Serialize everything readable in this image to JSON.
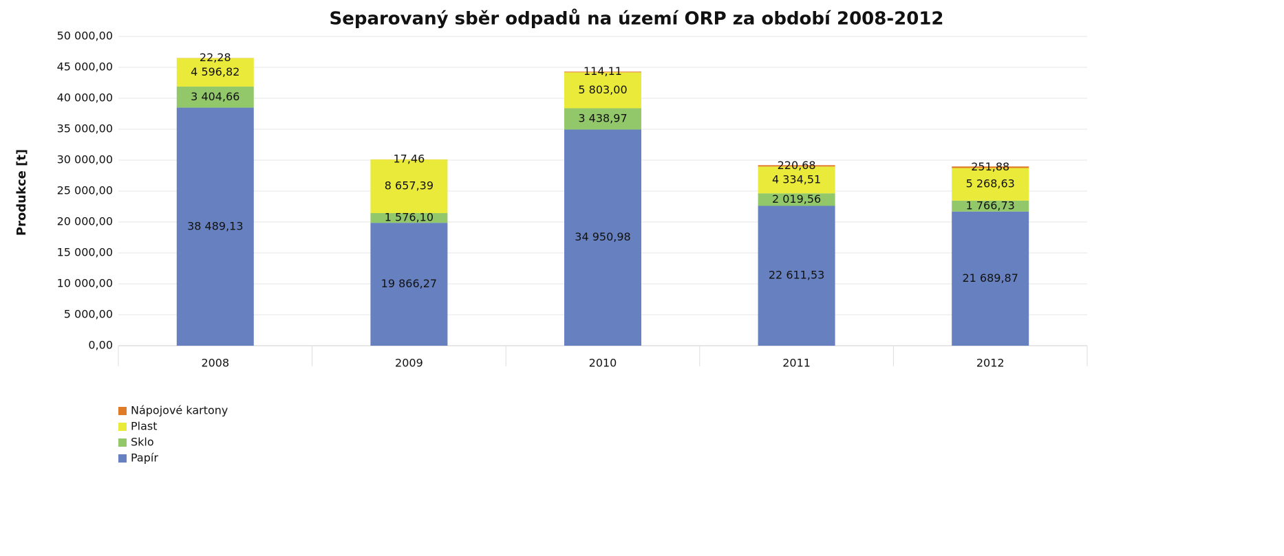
{
  "chart_data": {
    "type": "stacked_bar",
    "title": "Separovaný sběr odpadů na území ORP za období 2008-2012",
    "y_label": "Produkce [t]",
    "categories": [
      "2008",
      "2009",
      "2010",
      "2011",
      "2012"
    ],
    "series": [
      {
        "name": "Papír",
        "color": "#6680c0",
        "values": [
          38489.13,
          19866.27,
          34950.98,
          22611.53,
          21689.87
        ],
        "value_labels": [
          "38 489,13",
          "19 866,27",
          "34 950,98",
          "22 611,53",
          "21 689,87"
        ]
      },
      {
        "name": "Sklo",
        "color": "#92c86a",
        "values": [
          3404.66,
          1576.1,
          3438.97,
          2019.56,
          1766.73
        ],
        "value_labels": [
          "3 404,66",
          "1 576,10",
          "3 438,97",
          "2 019,56",
          "1 766,73"
        ]
      },
      {
        "name": "Plast",
        "color": "#eaea3a",
        "values": [
          4596.82,
          8657.39,
          5803.0,
          4334.51,
          5268.63
        ],
        "value_labels": [
          "4 596,82",
          "8 657,39",
          "5 803,00",
          "4 334,51",
          "5 268,63"
        ]
      },
      {
        "name": "Nápojové kartony",
        "color": "#e07b28",
        "values": [
          22.28,
          17.46,
          114.11,
          220.68,
          251.88
        ],
        "value_labels": [
          "22,28",
          "17,46",
          "114,11",
          "220,68",
          "251,88"
        ]
      }
    ],
    "ylim": [
      0,
      50000
    ],
    "yticks": [
      {
        "value": 0,
        "label": "0,00"
      },
      {
        "value": 5000,
        "label": "5 000,00"
      },
      {
        "value": 10000,
        "label": "10 000,00"
      },
      {
        "value": 15000,
        "label": "15 000,00"
      },
      {
        "value": 20000,
        "label": "20 000,00"
      },
      {
        "value": 25000,
        "label": "25 000,00"
      },
      {
        "value": 30000,
        "label": "30 000,00"
      },
      {
        "value": 35000,
        "label": "35 000,00"
      },
      {
        "value": 40000,
        "label": "40 000,00"
      },
      {
        "value": 45000,
        "label": "45 000,00"
      },
      {
        "value": 50000,
        "label": "50 000,00"
      }
    ],
    "grid": true,
    "legend": "bottom-left"
  }
}
